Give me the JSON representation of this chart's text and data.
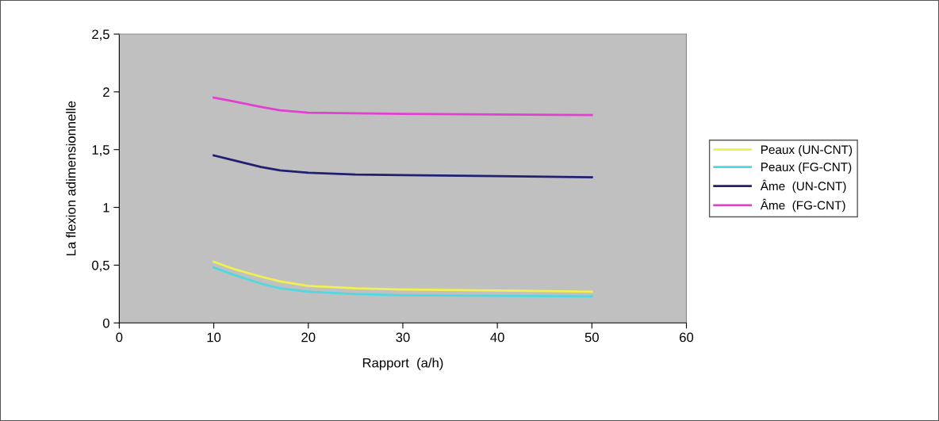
{
  "chart_data": {
    "type": "line",
    "xlabel": "Rapport  (a/h)",
    "ylabel": "La flexion adimensionnelle",
    "x": [
      10,
      12,
      15,
      17,
      20,
      25,
      30,
      40,
      50
    ],
    "series": [
      {
        "name": "Peaux (UN-CNT)",
        "color": "#f0f050",
        "values": [
          0.53,
          0.47,
          0.4,
          0.36,
          0.32,
          0.3,
          0.29,
          0.28,
          0.27
        ]
      },
      {
        "name": "Peaux (FG-CNT)",
        "color": "#50d8e0",
        "values": [
          0.48,
          0.42,
          0.34,
          0.3,
          0.27,
          0.25,
          0.24,
          0.235,
          0.23
        ]
      },
      {
        "name": "Âme  (UN-CNT)",
        "color": "#202070",
        "values": [
          1.45,
          1.41,
          1.35,
          1.32,
          1.3,
          1.285,
          1.28,
          1.27,
          1.26
        ]
      },
      {
        "name": "Âme  (FG-CNT)",
        "color": "#e040d0",
        "values": [
          1.95,
          1.92,
          1.87,
          1.84,
          1.82,
          1.815,
          1.81,
          1.805,
          1.8
        ]
      }
    ],
    "xlim": [
      0,
      60
    ],
    "xticks": [
      0,
      10,
      20,
      30,
      40,
      50,
      60
    ],
    "ylim": [
      0,
      2.5
    ],
    "yticks": [
      {
        "value": 2.5,
        "label": "2,5"
      },
      2,
      {
        "value": 1.5,
        "label": "1,5"
      },
      1,
      {
        "value": 0.5,
        "label": "0,5"
      },
      0
    ],
    "grid": false,
    "legend": "right",
    "marker": "none",
    "line_style": "solid"
  }
}
